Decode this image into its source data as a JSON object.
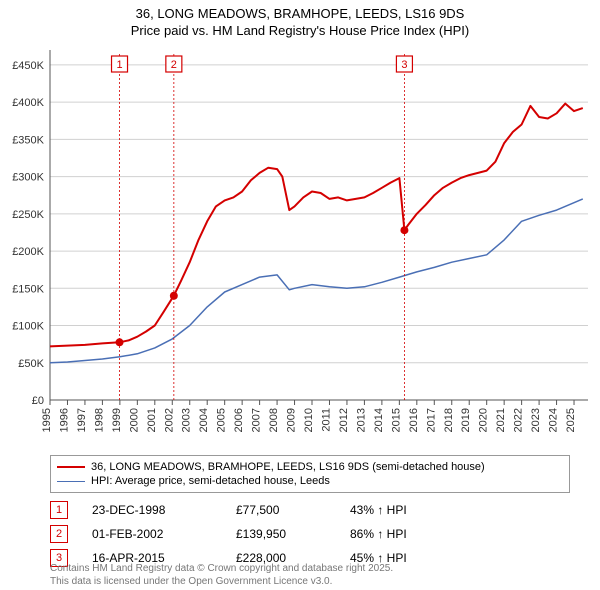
{
  "title_line1": "36, LONG MEADOWS, BRAMHOPE, LEEDS, LS16 9DS",
  "title_line2": "Price paid vs. HM Land Registry's House Price Index (HPI)",
  "chart": {
    "type": "line",
    "background_color": "#ffffff",
    "grid_color": "#d0d0d0",
    "axis_color": "#555555",
    "tick_label_color": "#333333",
    "tick_fontsize": 11,
    "x_years": [
      1995,
      1996,
      1997,
      1998,
      1999,
      2000,
      2001,
      2002,
      2003,
      2004,
      2005,
      2006,
      2007,
      2008,
      2009,
      2010,
      2011,
      2012,
      2013,
      2014,
      2015,
      2016,
      2017,
      2018,
      2019,
      2020,
      2021,
      2022,
      2023,
      2024,
      2025
    ],
    "xlim": [
      1995,
      2025.8
    ],
    "y_ticks": [
      0,
      50,
      100,
      150,
      200,
      250,
      300,
      350,
      400,
      450
    ],
    "y_tick_labels": [
      "£0",
      "£50K",
      "£100K",
      "£150K",
      "£200K",
      "£250K",
      "£300K",
      "£350K",
      "£400K",
      "£450K"
    ],
    "ylim": [
      0,
      470
    ],
    "series": [
      {
        "name": "36, LONG MEADOWS, BRAMHOPE, LEEDS, LS16 9DS (semi-detached house)",
        "color": "#d40000",
        "line_width": 2,
        "points": [
          [
            1995,
            72
          ],
          [
            1996,
            73
          ],
          [
            1997,
            74
          ],
          [
            1998,
            76
          ],
          [
            1998.98,
            77.5
          ],
          [
            1999.5,
            80
          ],
          [
            2000,
            85
          ],
          [
            2000.5,
            92
          ],
          [
            2001,
            100
          ],
          [
            2001.5,
            118
          ],
          [
            2002.09,
            140
          ],
          [
            2002.5,
            160
          ],
          [
            2003,
            185
          ],
          [
            2003.5,
            215
          ],
          [
            2004,
            240
          ],
          [
            2004.5,
            260
          ],
          [
            2005,
            268
          ],
          [
            2005.5,
            272
          ],
          [
            2006,
            280
          ],
          [
            2006.5,
            295
          ],
          [
            2007,
            305
          ],
          [
            2007.5,
            312
          ],
          [
            2008,
            310
          ],
          [
            2008.3,
            300
          ],
          [
            2008.7,
            255
          ],
          [
            2009,
            260
          ],
          [
            2009.5,
            272
          ],
          [
            2010,
            280
          ],
          [
            2010.5,
            278
          ],
          [
            2011,
            270
          ],
          [
            2011.5,
            272
          ],
          [
            2012,
            268
          ],
          [
            2012.5,
            270
          ],
          [
            2013,
            272
          ],
          [
            2013.5,
            278
          ],
          [
            2014,
            285
          ],
          [
            2014.5,
            292
          ],
          [
            2015,
            298
          ],
          [
            2015.29,
            228
          ],
          [
            2015.5,
            235
          ],
          [
            2016,
            250
          ],
          [
            2016.5,
            262
          ],
          [
            2017,
            275
          ],
          [
            2017.5,
            285
          ],
          [
            2018,
            292
          ],
          [
            2018.5,
            298
          ],
          [
            2019,
            302
          ],
          [
            2019.5,
            305
          ],
          [
            2020,
            308
          ],
          [
            2020.5,
            320
          ],
          [
            2021,
            345
          ],
          [
            2021.5,
            360
          ],
          [
            2022,
            370
          ],
          [
            2022.5,
            395
          ],
          [
            2023,
            380
          ],
          [
            2023.5,
            378
          ],
          [
            2024,
            385
          ],
          [
            2024.5,
            398
          ],
          [
            2025,
            388
          ],
          [
            2025.5,
            392
          ]
        ]
      },
      {
        "name": "HPI: Average price, semi-detached house, Leeds",
        "color": "#4a6fb5",
        "line_width": 1.5,
        "points": [
          [
            1995,
            50
          ],
          [
            1996,
            51
          ],
          [
            1997,
            53
          ],
          [
            1998,
            55
          ],
          [
            1999,
            58
          ],
          [
            2000,
            62
          ],
          [
            2001,
            70
          ],
          [
            2002,
            82
          ],
          [
            2003,
            100
          ],
          [
            2004,
            125
          ],
          [
            2005,
            145
          ],
          [
            2006,
            155
          ],
          [
            2007,
            165
          ],
          [
            2008,
            168
          ],
          [
            2008.7,
            148
          ],
          [
            2009,
            150
          ],
          [
            2010,
            155
          ],
          [
            2011,
            152
          ],
          [
            2012,
            150
          ],
          [
            2013,
            152
          ],
          [
            2014,
            158
          ],
          [
            2015,
            165
          ],
          [
            2016,
            172
          ],
          [
            2017,
            178
          ],
          [
            2018,
            185
          ],
          [
            2019,
            190
          ],
          [
            2020,
            195
          ],
          [
            2021,
            215
          ],
          [
            2022,
            240
          ],
          [
            2023,
            248
          ],
          [
            2024,
            255
          ],
          [
            2025,
            265
          ],
          [
            2025.5,
            270
          ]
        ]
      }
    ],
    "sale_markers": [
      {
        "n": "1",
        "year": 1998.98,
        "value": 77.5,
        "color": "#d40000"
      },
      {
        "n": "2",
        "year": 2002.09,
        "value": 140,
        "color": "#d40000"
      },
      {
        "n": "3",
        "year": 2015.29,
        "value": 228,
        "color": "#d40000"
      }
    ],
    "marker_dot_radius": 4
  },
  "legend": {
    "rows": [
      {
        "color": "#d40000",
        "width": 2,
        "label": "36, LONG MEADOWS, BRAMHOPE, LEEDS, LS16 9DS (semi-detached house)"
      },
      {
        "color": "#4a6fb5",
        "width": 1.5,
        "label": "HPI: Average price, semi-detached house, Leeds"
      }
    ]
  },
  "sales_table": {
    "arrow": "↑",
    "hpi_suffix": "HPI",
    "rows": [
      {
        "n": "1",
        "color": "#d40000",
        "date": "23-DEC-1998",
        "price": "£77,500",
        "hpi_pct": "43%"
      },
      {
        "n": "2",
        "color": "#d40000",
        "date": "01-FEB-2002",
        "price": "£139,950",
        "hpi_pct": "86%"
      },
      {
        "n": "3",
        "color": "#d40000",
        "date": "16-APR-2015",
        "price": "£228,000",
        "hpi_pct": "45%"
      }
    ]
  },
  "footer_line1": "Contains HM Land Registry data © Crown copyright and database right 2025.",
  "footer_line2": "This data is licensed under the Open Government Licence v3.0."
}
